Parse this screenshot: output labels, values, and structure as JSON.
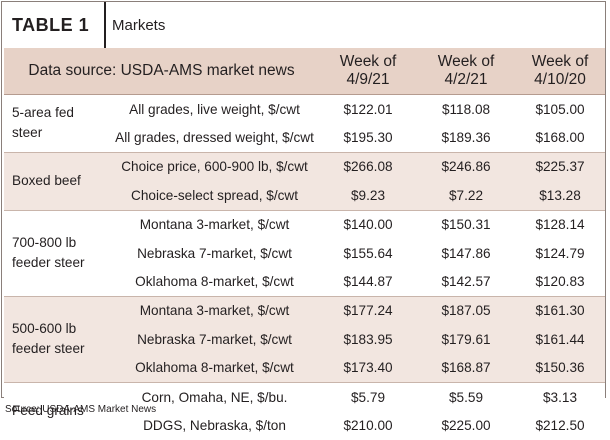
{
  "title": {
    "label": "TABLE 1",
    "name": "Markets"
  },
  "header": {
    "source": "Data source: USDA-AMS market news",
    "weeks": [
      "Week of\n4/9/21",
      "Week of\n4/2/21",
      "Week of\n4/10/20"
    ]
  },
  "groups": [
    {
      "label": "5-area fed\nsteer",
      "rows": [
        {
          "desc": "All grades, live weight, $/cwt",
          "v": [
            "$122.01",
            "$118.08",
            "$105.00"
          ]
        },
        {
          "desc": "All grades, dressed weight, $/cwt",
          "v": [
            "$195.30",
            "$189.36",
            "$168.00"
          ]
        }
      ]
    },
    {
      "label": "Boxed beef",
      "rows": [
        {
          "desc": "Choice price, 600-900 lb, $/cwt",
          "v": [
            "$266.08",
            "$246.86",
            "$225.37"
          ]
        },
        {
          "desc": "Choice-select spread, $/cwt",
          "v": [
            "$9.23",
            "$7.22",
            "$13.28"
          ]
        }
      ]
    },
    {
      "label": "700-800 lb\nfeeder steer",
      "rows": [
        {
          "desc": "Montana 3-market, $/cwt",
          "v": [
            "$140.00",
            "$150.31",
            "$128.14"
          ]
        },
        {
          "desc": "Nebraska 7-market, $/cwt",
          "v": [
            "$155.64",
            "$147.86",
            "$124.79"
          ]
        },
        {
          "desc": "Oklahoma 8-market, $/cwt",
          "v": [
            "$144.87",
            "$142.57",
            "$120.83"
          ]
        }
      ]
    },
    {
      "label": "500-600 lb\nfeeder steer",
      "rows": [
        {
          "desc": "Montana 3-market, $/cwt",
          "v": [
            "$177.24",
            "$187.05",
            "$161.30"
          ]
        },
        {
          "desc": "Nebraska 7-market, $/cwt",
          "v": [
            "$183.95",
            "$179.61",
            "$161.44"
          ]
        },
        {
          "desc": "Oklahoma 8-market, $/cwt",
          "v": [
            "$173.40",
            "$168.87",
            "$150.36"
          ]
        }
      ]
    },
    {
      "label": "Feed grains",
      "rows": [
        {
          "desc": "Corn, Omaha, NE, $/bu.",
          "v": [
            "$5.79",
            "$5.59",
            "$3.13"
          ]
        },
        {
          "desc": "DDGS, Nebraska, $/ton",
          "v": [
            "$210.00",
            "$225.00",
            "$212.50"
          ]
        }
      ]
    }
  ],
  "footer": {
    "source": "Source: USDA-AMS Market News"
  }
}
